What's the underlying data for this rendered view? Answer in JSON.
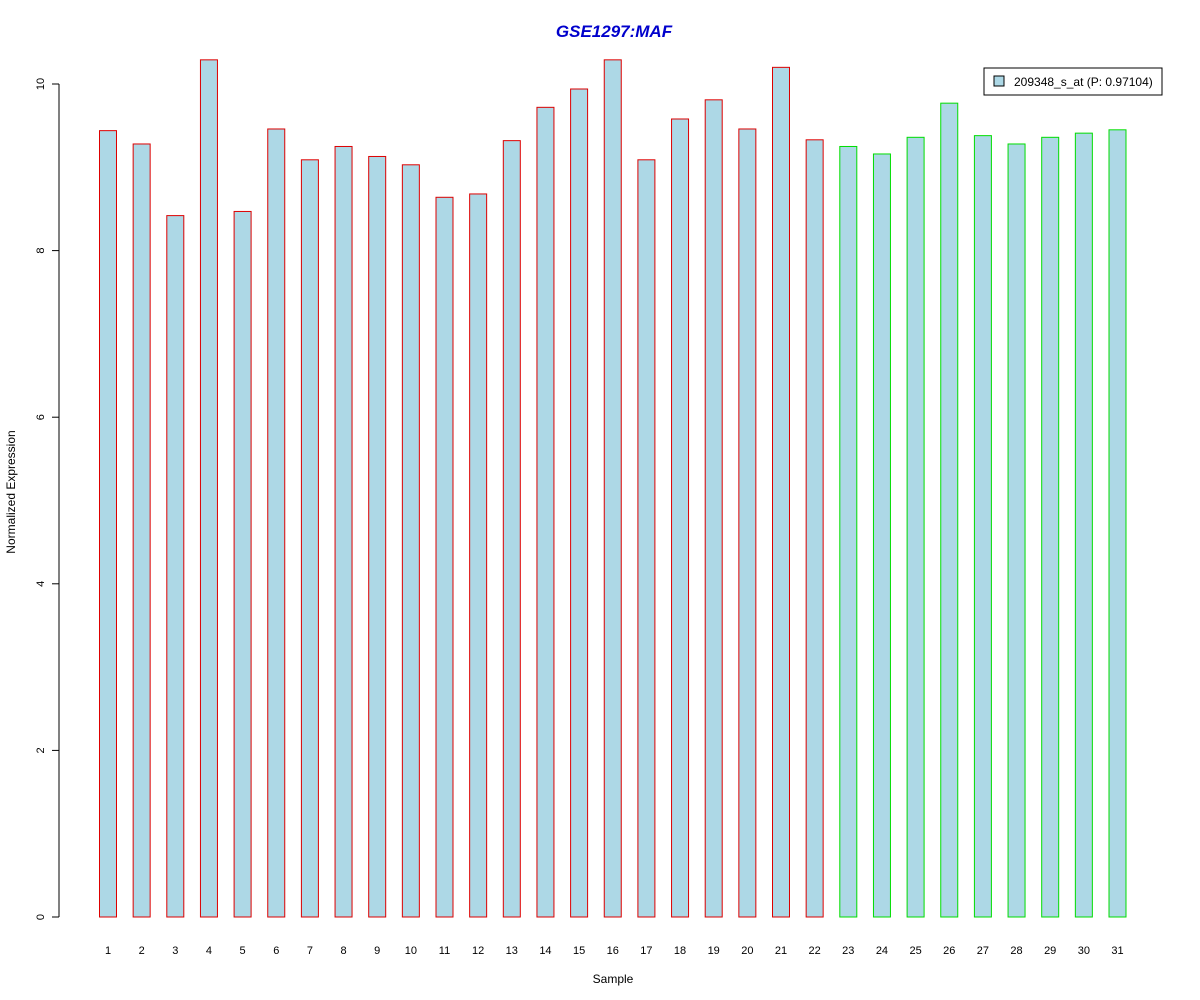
{
  "chart_data": {
    "type": "bar",
    "title": "GSE1297:MAF",
    "xlabel": "Sample",
    "ylabel": "Normalized Expression",
    "ylim": [
      0,
      10.4
    ],
    "yticks": [
      0,
      2,
      4,
      6,
      8,
      10
    ],
    "grid": false,
    "legend": {
      "placement": "top-right",
      "entries": [
        "209348_s_at (P: 0.97104)"
      ]
    },
    "categories": [
      "1",
      "2",
      "3",
      "4",
      "5",
      "6",
      "7",
      "8",
      "9",
      "10",
      "11",
      "12",
      "13",
      "14",
      "15",
      "16",
      "17",
      "18",
      "19",
      "20",
      "21",
      "22",
      "23",
      "24",
      "25",
      "26",
      "27",
      "28",
      "29",
      "30",
      "31"
    ],
    "series": [
      {
        "name": "209348_s_at (P: 0.97104)",
        "values": [
          9.44,
          9.28,
          8.42,
          10.29,
          8.47,
          9.46,
          9.09,
          9.25,
          9.13,
          9.03,
          8.64,
          8.68,
          9.32,
          9.72,
          9.94,
          10.29,
          9.09,
          9.58,
          9.81,
          9.46,
          10.2,
          9.33,
          9.25,
          9.16,
          9.36,
          9.77,
          9.38,
          9.28,
          9.36,
          9.41,
          9.45
        ]
      }
    ],
    "groups": [
      "A",
      "A",
      "A",
      "A",
      "A",
      "A",
      "A",
      "A",
      "A",
      "A",
      "A",
      "A",
      "A",
      "A",
      "A",
      "A",
      "A",
      "A",
      "A",
      "A",
      "A",
      "A",
      "B",
      "B",
      "B",
      "B",
      "B",
      "B",
      "B",
      "B",
      "B"
    ],
    "colors": {
      "title": "#0000cc",
      "bar_fill": "#add8e6",
      "group_A_border": "#dd0000",
      "group_B_border": "#00dd00",
      "axis": "#000000"
    }
  }
}
